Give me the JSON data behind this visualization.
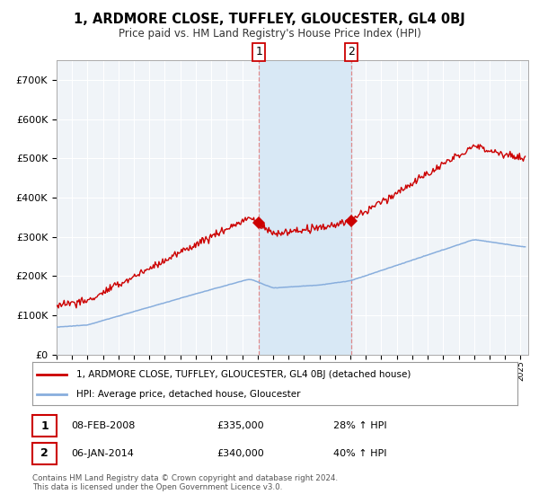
{
  "title": "1, ARDMORE CLOSE, TUFFLEY, GLOUCESTER, GL4 0BJ",
  "subtitle": "Price paid vs. HM Land Registry's House Price Index (HPI)",
  "ylim": [
    0,
    750000
  ],
  "xlim_start": 1995.0,
  "xlim_end": 2025.5,
  "transaction1_date": 2008.08,
  "transaction1_price": 335000,
  "transaction2_date": 2014.03,
  "transaction2_price": 340000,
  "legend_line1": "1, ARDMORE CLOSE, TUFFLEY, GLOUCESTER, GL4 0BJ (detached house)",
  "legend_line2": "HPI: Average price, detached house, Gloucester",
  "row1_date": "08-FEB-2008",
  "row1_price": "£335,000",
  "row1_hpi": "28% ↑ HPI",
  "row2_date": "06-JAN-2014",
  "row2_price": "£340,000",
  "row2_hpi": "40% ↑ HPI",
  "footer": "Contains HM Land Registry data © Crown copyright and database right 2024.\nThis data is licensed under the Open Government Licence v3.0.",
  "red_color": "#cc0000",
  "blue_color": "#88aedd",
  "shade_color": "#d8e8f5",
  "dashed_color": "#e08080",
  "bg_color": "#f0f4f8",
  "grid_color": "#ffffff"
}
